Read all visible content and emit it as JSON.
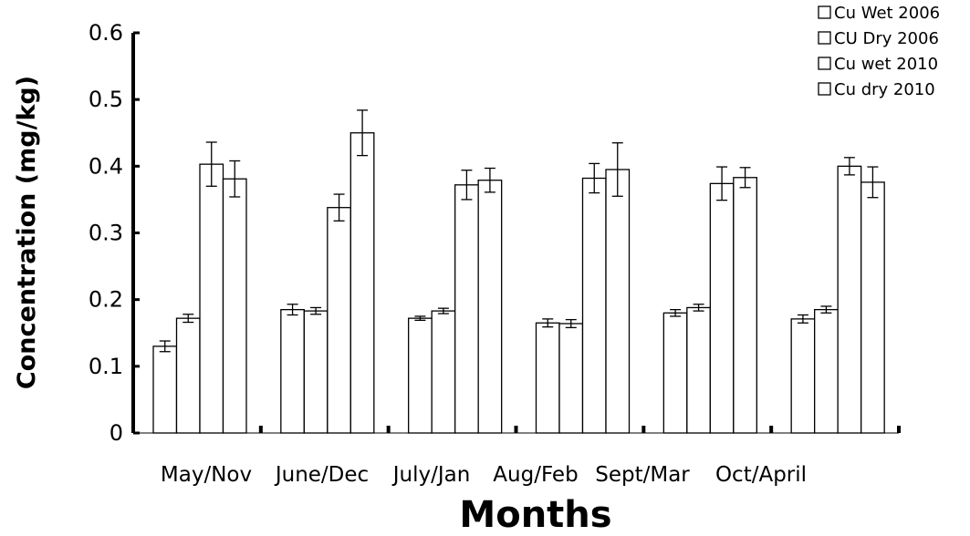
{
  "chart_data": {
    "type": "bar",
    "title": "",
    "xlabel": "Months",
    "ylabel": "Concentration (mg/kg)",
    "ylim": [
      0,
      0.6
    ],
    "yticks": [
      "0",
      "0.1",
      "0.2",
      "0.3",
      "0.4",
      "0.5",
      "0.6"
    ],
    "grid": false,
    "legend_position": "top-right",
    "categories": [
      "May/Nov",
      "June/Dec",
      "July/Jan",
      "Aug/Feb",
      "Sept/Mar",
      "Oct/April"
    ],
    "series": [
      {
        "name": "Cu Wet 2006",
        "values": [
          0.13,
          0.185,
          0.172,
          0.165,
          0.18,
          0.171
        ],
        "errors": [
          0.008,
          0.008,
          0.003,
          0.006,
          0.005,
          0.006
        ]
      },
      {
        "name": "CU Dry 2006",
        "values": [
          0.172,
          0.183,
          0.183,
          0.164,
          0.188,
          0.185
        ],
        "errors": [
          0.006,
          0.005,
          0.004,
          0.006,
          0.005,
          0.005
        ]
      },
      {
        "name": "Cu wet 2010",
        "values": [
          0.403,
          0.338,
          0.372,
          0.382,
          0.374,
          0.4
        ],
        "errors": [
          0.033,
          0.02,
          0.022,
          0.022,
          0.025,
          0.013
        ]
      },
      {
        "name": "Cu dry 2010",
        "values": [
          0.381,
          0.45,
          0.379,
          0.395,
          0.383,
          0.376
        ],
        "errors": [
          0.027,
          0.034,
          0.018,
          0.04,
          0.015,
          0.023
        ]
      }
    ],
    "colors": {
      "bar_fill": "#ffffff",
      "bar_stroke": "#000000",
      "axis": "#000000"
    }
  }
}
